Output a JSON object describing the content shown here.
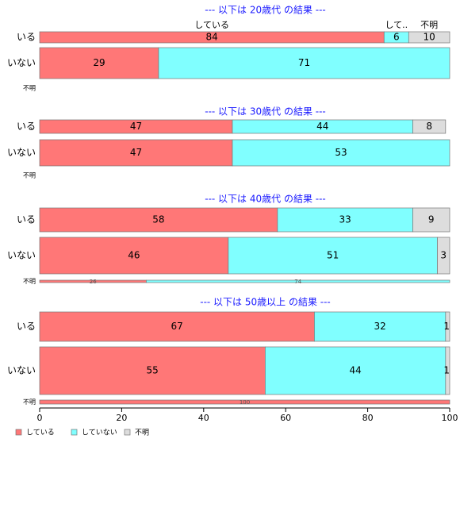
{
  "chart_data": {
    "type": "bar",
    "orientation": "horizontal",
    "stacked": "percent",
    "xlim": [
      0,
      100
    ],
    "x_ticks": [
      0,
      20,
      40,
      60,
      80,
      100
    ],
    "series_names": [
      "している",
      "していない",
      "不明"
    ],
    "colors": [
      "#FF7777",
      "#80FFFF",
      "#DDDDDD"
    ],
    "legend_position": "bottom-left",
    "grid": false,
    "panels": [
      {
        "title": "--- 以下は 20歳代 の結果 ---",
        "top_labels": [
          "している",
          "して..",
          "不明"
        ],
        "rows": [
          {
            "label": "いる",
            "values": [
              84,
              6,
              10
            ]
          },
          {
            "label": "いない",
            "values": [
              29,
              71,
              0
            ]
          },
          {
            "label": "不明",
            "values": [
              0,
              0,
              0
            ]
          }
        ]
      },
      {
        "title": "--- 以下は 30歳代 の結果 ---",
        "rows": [
          {
            "label": "いる",
            "values": [
              47,
              44,
              8
            ]
          },
          {
            "label": "いない",
            "values": [
              47,
              53,
              0
            ]
          },
          {
            "label": "不明",
            "values": [
              0,
              0,
              0
            ]
          }
        ]
      },
      {
        "title": "--- 以下は 40歳代 の結果 ---",
        "rows": [
          {
            "label": "いる",
            "values": [
              58,
              33,
              9
            ]
          },
          {
            "label": "いない",
            "values": [
              46,
              51,
              3
            ]
          },
          {
            "label": "不明",
            "values": [
              26,
              74,
              0
            ]
          }
        ]
      },
      {
        "title": "--- 以下は 50歳以上 の結果 ---",
        "rows": [
          {
            "label": "いる",
            "values": [
              67,
              32,
              1
            ]
          },
          {
            "label": "いない",
            "values": [
              55,
              44,
              1
            ]
          },
          {
            "label": "不明",
            "values": [
              100,
              0,
              0
            ]
          }
        ]
      }
    ]
  }
}
